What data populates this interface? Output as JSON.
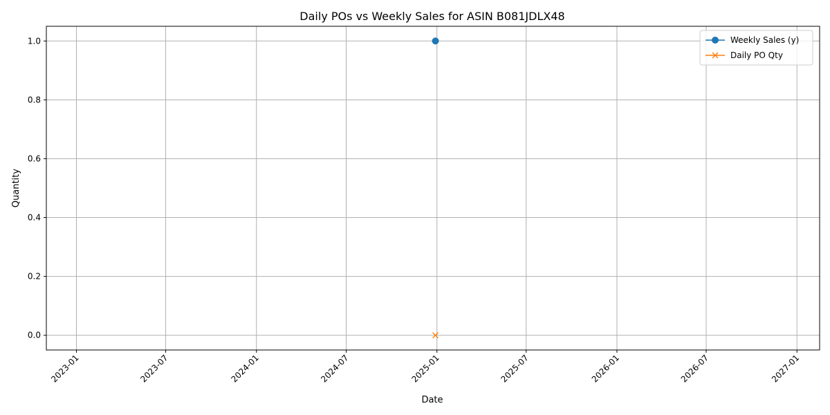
{
  "chart_data": {
    "type": "line",
    "title": "Daily POs vs Weekly Sales for ASIN B081JDLX48",
    "xlabel": "Date",
    "ylabel": "Quantity",
    "x_axis_kind": "date",
    "xlim": [
      "2022-11-01",
      "2027-02-16"
    ],
    "ylim": [
      -0.05,
      1.05
    ],
    "x_ticks": [
      "2023-01",
      "2023-07",
      "2024-01",
      "2024-07",
      "2025-01",
      "2025-07",
      "2026-01",
      "2026-07",
      "2027-01"
    ],
    "y_ticks": [
      "0.0",
      "0.2",
      "0.4",
      "0.6",
      "0.8",
      "1.0"
    ],
    "grid": true,
    "legend_position": "top-right",
    "series": [
      {
        "name": "Weekly Sales (y)",
        "color": "#1f77b4",
        "marker": "circle",
        "points": [
          {
            "x": "2024-12-29",
            "y": 1.0
          }
        ]
      },
      {
        "name": "Daily PO Qty",
        "color": "#ff7f0e",
        "marker": "x",
        "points": [
          {
            "x": "2024-12-29",
            "y": 0.0
          }
        ]
      }
    ]
  }
}
